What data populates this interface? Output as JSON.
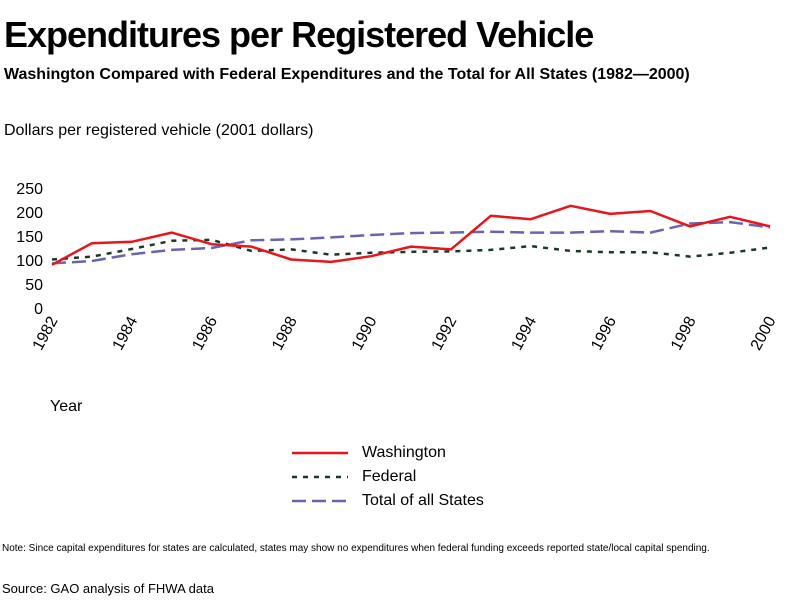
{
  "title": "Expenditures per Registered Vehicle",
  "subtitle": "Washington Compared with Federal Expenditures and the Total for All States (1982—2000)",
  "ylabel": "Dollars per registered vehicle (2001 dollars)",
  "xlabel": "Year",
  "note": "Note:  Since capital expenditures for states are calculated, states may show no expenditures when federal funding exceeds reported state/local capital spending.",
  "source": "Source: GAO analysis of FHWA data",
  "colors": {
    "washington": "#e8151b",
    "federal": "#163a23",
    "total": "#6a64b0"
  },
  "chart_data": {
    "type": "line",
    "title": "Expenditures per Registered Vehicle",
    "subtitle": "Washington Compared with Federal Expenditures and the Total for All States (1982—2000)",
    "xlabel": "Year",
    "ylabel": "Dollars per registered vehicle (2001 dollars)",
    "x": [
      1982,
      1983,
      1984,
      1985,
      1986,
      1987,
      1988,
      1989,
      1990,
      1991,
      1992,
      1993,
      1994,
      1995,
      1996,
      1997,
      1998,
      1999,
      2000
    ],
    "xticks": [
      "1982",
      "1984",
      "1986",
      "1988",
      "1990",
      "1992",
      "1994",
      "1996",
      "1998",
      "2000"
    ],
    "yticks": [
      "0",
      "50",
      "100",
      "150",
      "200",
      "250"
    ],
    "ylim": [
      0,
      250
    ],
    "xlim": [
      1982,
      2000
    ],
    "legend_position": "bottom-center",
    "grid": false,
    "series": [
      {
        "name": "Washington",
        "style": "solid",
        "values": [
          90,
          135,
          138,
          157,
          133,
          128,
          101,
          96,
          108,
          128,
          122,
          192,
          185,
          213,
          196,
          202,
          170,
          190,
          170
        ]
      },
      {
        "name": "Federal",
        "style": "short-dash",
        "values": [
          101,
          107,
          123,
          140,
          142,
          119,
          122,
          111,
          115,
          117,
          118,
          121,
          129,
          119,
          116,
          116,
          107,
          115,
          126
        ]
      },
      {
        "name": "Total of all States",
        "style": "long-dash",
        "values": [
          93,
          98,
          112,
          121,
          125,
          141,
          143,
          147,
          152,
          156,
          157,
          159,
          157,
          157,
          160,
          157,
          176,
          179,
          168
        ]
      }
    ]
  }
}
